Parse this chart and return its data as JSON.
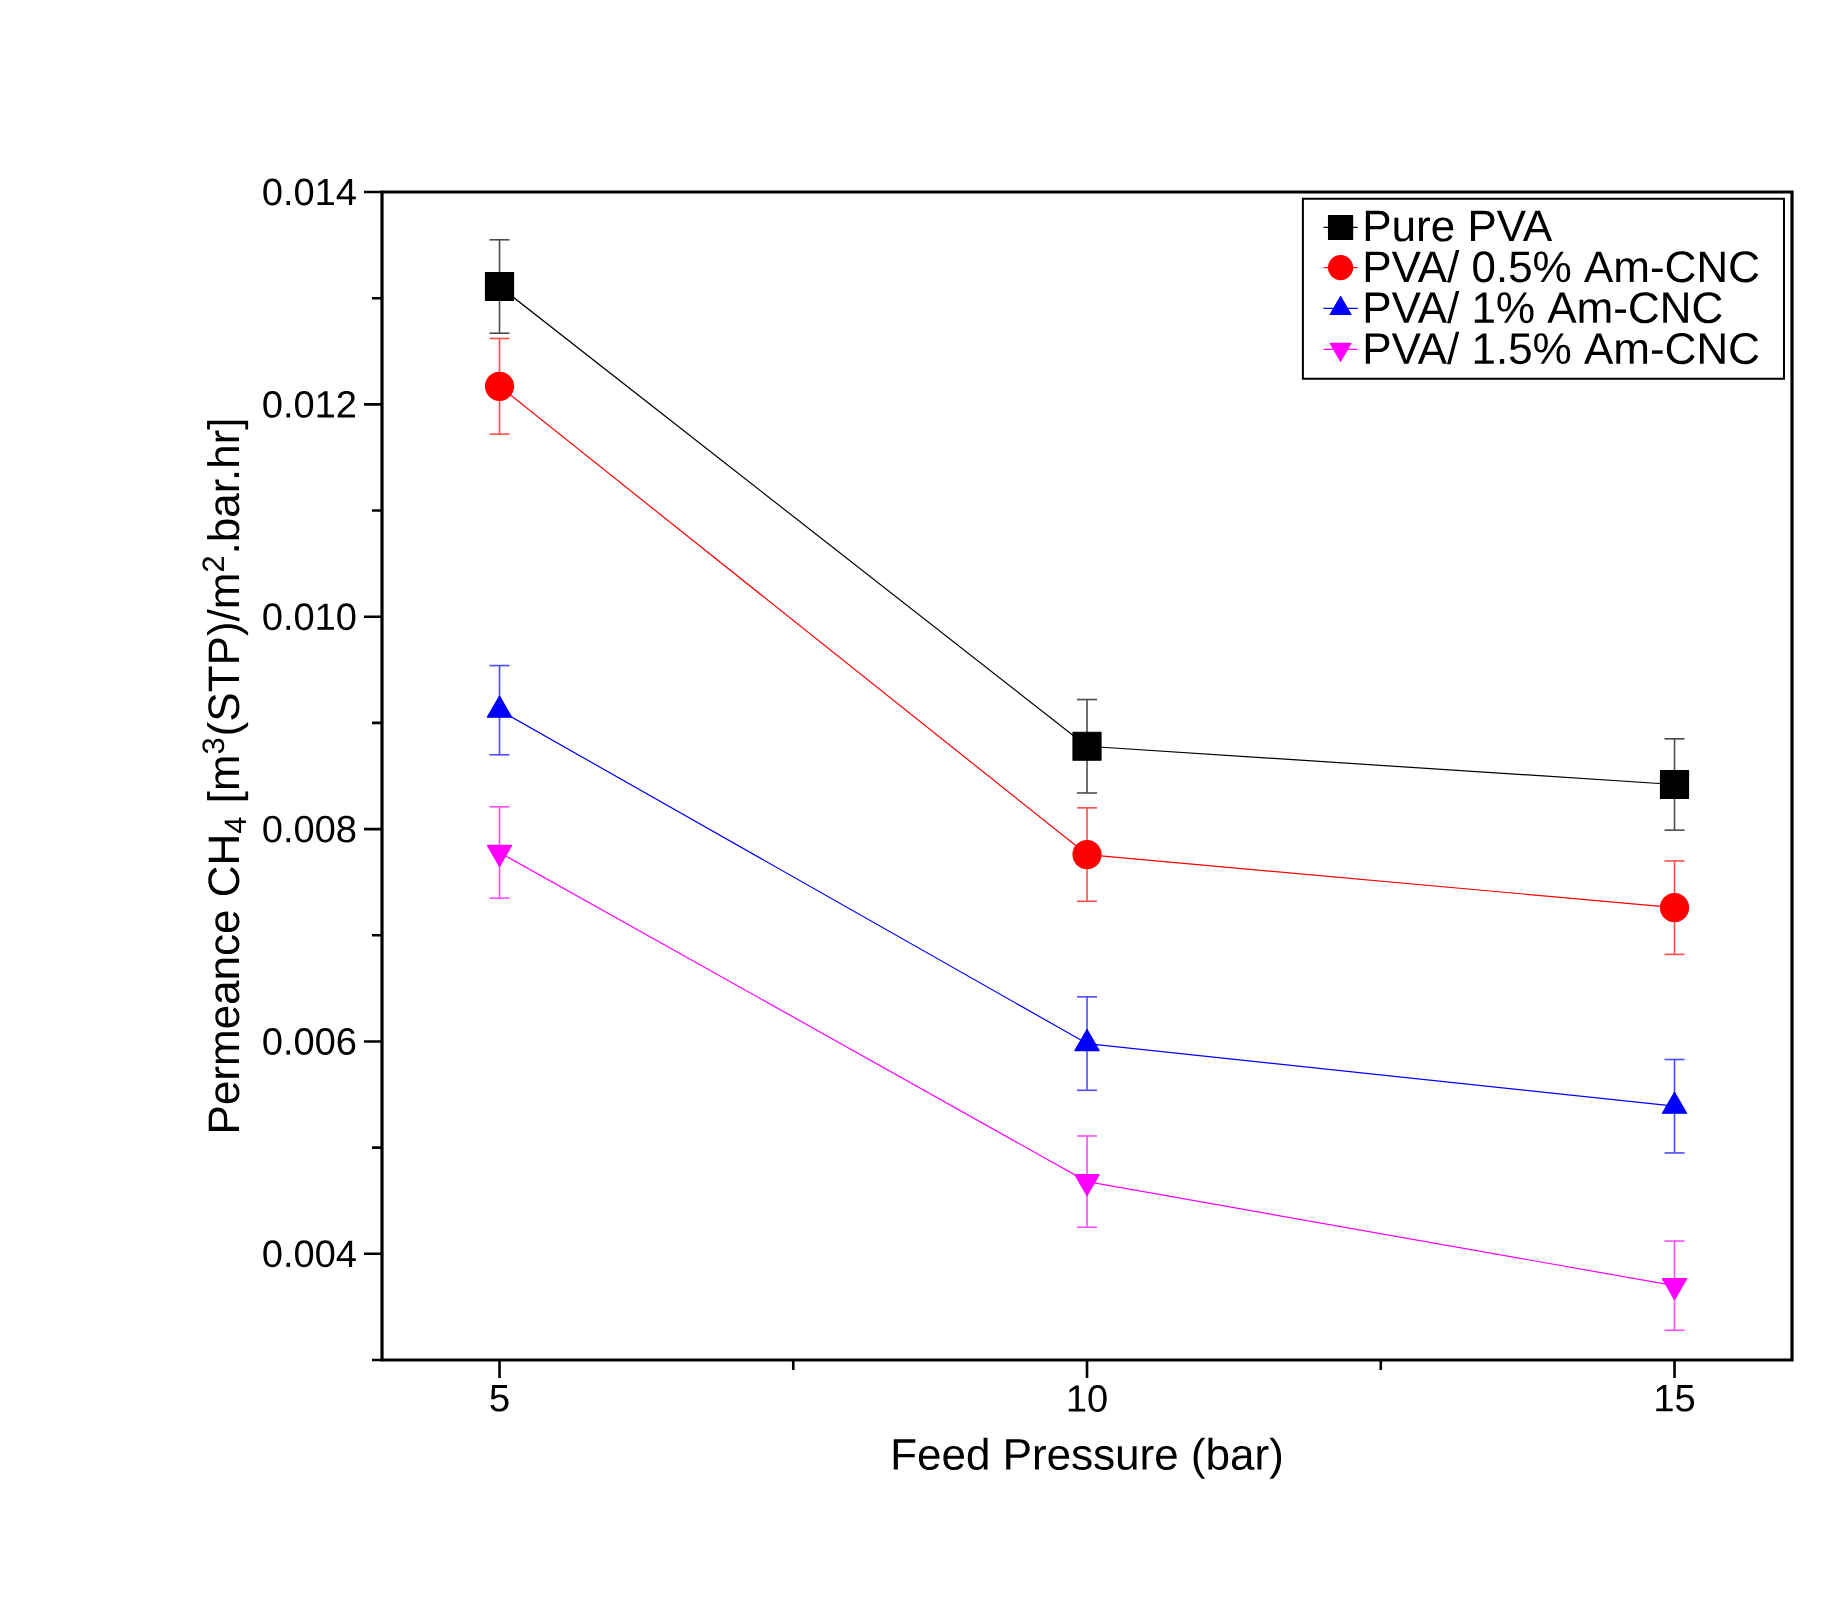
{
  "chart_data": {
    "type": "line",
    "xlabel": "Feed Pressure (bar)",
    "ylabel": "Permeance CH$_{4}$ [m$^{3}$(STP)/m$^{2}$.bar.hr]",
    "x": [
      5,
      10,
      15
    ],
    "series": [
      {
        "name": "Pure PVA",
        "color": "#000000",
        "marker": "square",
        "values": [
          0.01311,
          0.00878,
          0.00842
        ],
        "errors": [
          0.00044,
          0.00044,
          0.00043
        ]
      },
      {
        "name": "PVA/ 0.5% Am-CNC",
        "color": "#ff0000",
        "marker": "circle",
        "values": [
          0.01217,
          0.00776,
          0.00726
        ],
        "errors": [
          0.00045,
          0.00044,
          0.00044
        ]
      },
      {
        "name": "PVA/ 1% Am-CNC",
        "color": "#0000ff",
        "marker": "triangle",
        "values": [
          0.00912,
          0.00598,
          0.00539
        ],
        "errors": [
          0.00042,
          0.00044,
          0.00044
        ]
      },
      {
        "name": "PVA/ 1.5% Am-CNC",
        "color": "#ff00ff",
        "marker": "triangle-down",
        "values": [
          0.00778,
          0.00468,
          0.0037
        ],
        "errors": [
          0.00043,
          0.00043,
          0.00042
        ]
      }
    ],
    "xlim": [
      4,
      16
    ],
    "ylim": [
      0.003,
      0.014
    ],
    "xticks": [
      5,
      {
        "value": 7.5,
        "label": null
      },
      10,
      {
        "value": 12.5,
        "label": null
      },
      15
    ],
    "yticks": [
      {
        "value": 0.003,
        "label": null
      },
      0.004,
      {
        "value": 0.005,
        "label": null
      },
      0.006,
      {
        "value": 0.007,
        "label": null
      },
      0.008,
      {
        "value": 0.009,
        "label": null
      },
      {
        "value": 0.01,
        "label": "0.010"
      },
      {
        "value": 0.011,
        "label": null
      },
      0.012,
      {
        "value": 0.013,
        "label": null
      },
      0.014
    ],
    "grid": false,
    "legend": "top right",
    "line_style": "solid"
  }
}
